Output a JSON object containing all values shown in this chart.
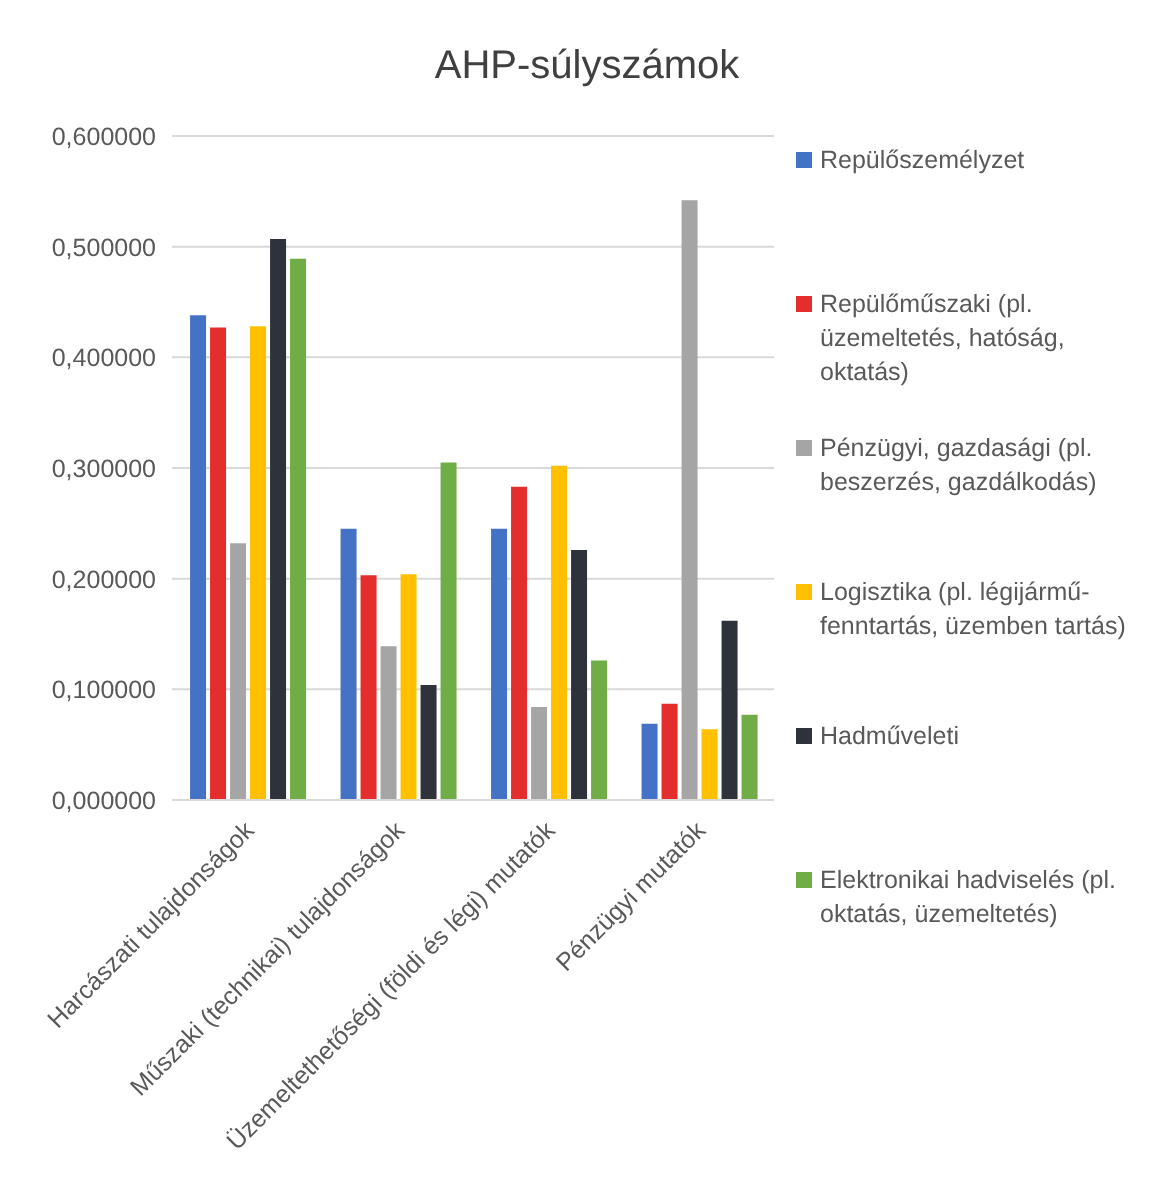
{
  "chart_data": {
    "type": "bar",
    "title": "AHP-súlyszámok",
    "categories": [
      "Harcászati tulajdonságok",
      "Műszaki (technikai) tulajdonságok",
      "Üzemeltethetőségi (földi és légi) mutatók",
      "Pénzügyi mutatók"
    ],
    "series": [
      {
        "name": "Repülőszemélyzet",
        "color": "#4472c4",
        "values": [
          0.438,
          0.245,
          0.245,
          0.069
        ]
      },
      {
        "name": "Repülőműszaki (pl. üzemeltetés, hatóság, oktatás)",
        "color": "#e42d2d",
        "values": [
          0.427,
          0.203,
          0.283,
          0.087
        ]
      },
      {
        "name": "Pénzügyi, gazdasági (pl. beszerzés, gazdálkodás)",
        "color": "#a5a5a5",
        "values": [
          0.232,
          0.139,
          0.084,
          0.542
        ]
      },
      {
        "name": "Logisztika (pl. légijármű-fenntartás, üzemben tartás)",
        "color": "#ffc000",
        "values": [
          0.428,
          0.204,
          0.302,
          0.064
        ]
      },
      {
        "name": "Hadműveleti",
        "color": "#2e333b",
        "values": [
          0.507,
          0.104,
          0.226,
          0.162
        ]
      },
      {
        "name": "Elektronikai hadviselés (pl. oktatás, üzemeltetés)",
        "color": "#70ad47",
        "values": [
          0.489,
          0.305,
          0.126,
          0.077
        ]
      }
    ],
    "ylim": [
      0,
      0.6
    ],
    "yticks": [
      {
        "value": 0,
        "label": "0,000000"
      },
      {
        "value": 0.1,
        "label": "0,100000"
      },
      {
        "value": 0.2,
        "label": "0,200000"
      },
      {
        "value": 0.3,
        "label": "0,300000"
      },
      {
        "value": 0.4,
        "label": "0,400000"
      },
      {
        "value": 0.5,
        "label": "0,500000"
      },
      {
        "value": 0.6,
        "label": "0,600000"
      }
    ],
    "grid": "y",
    "legend": "right"
  }
}
